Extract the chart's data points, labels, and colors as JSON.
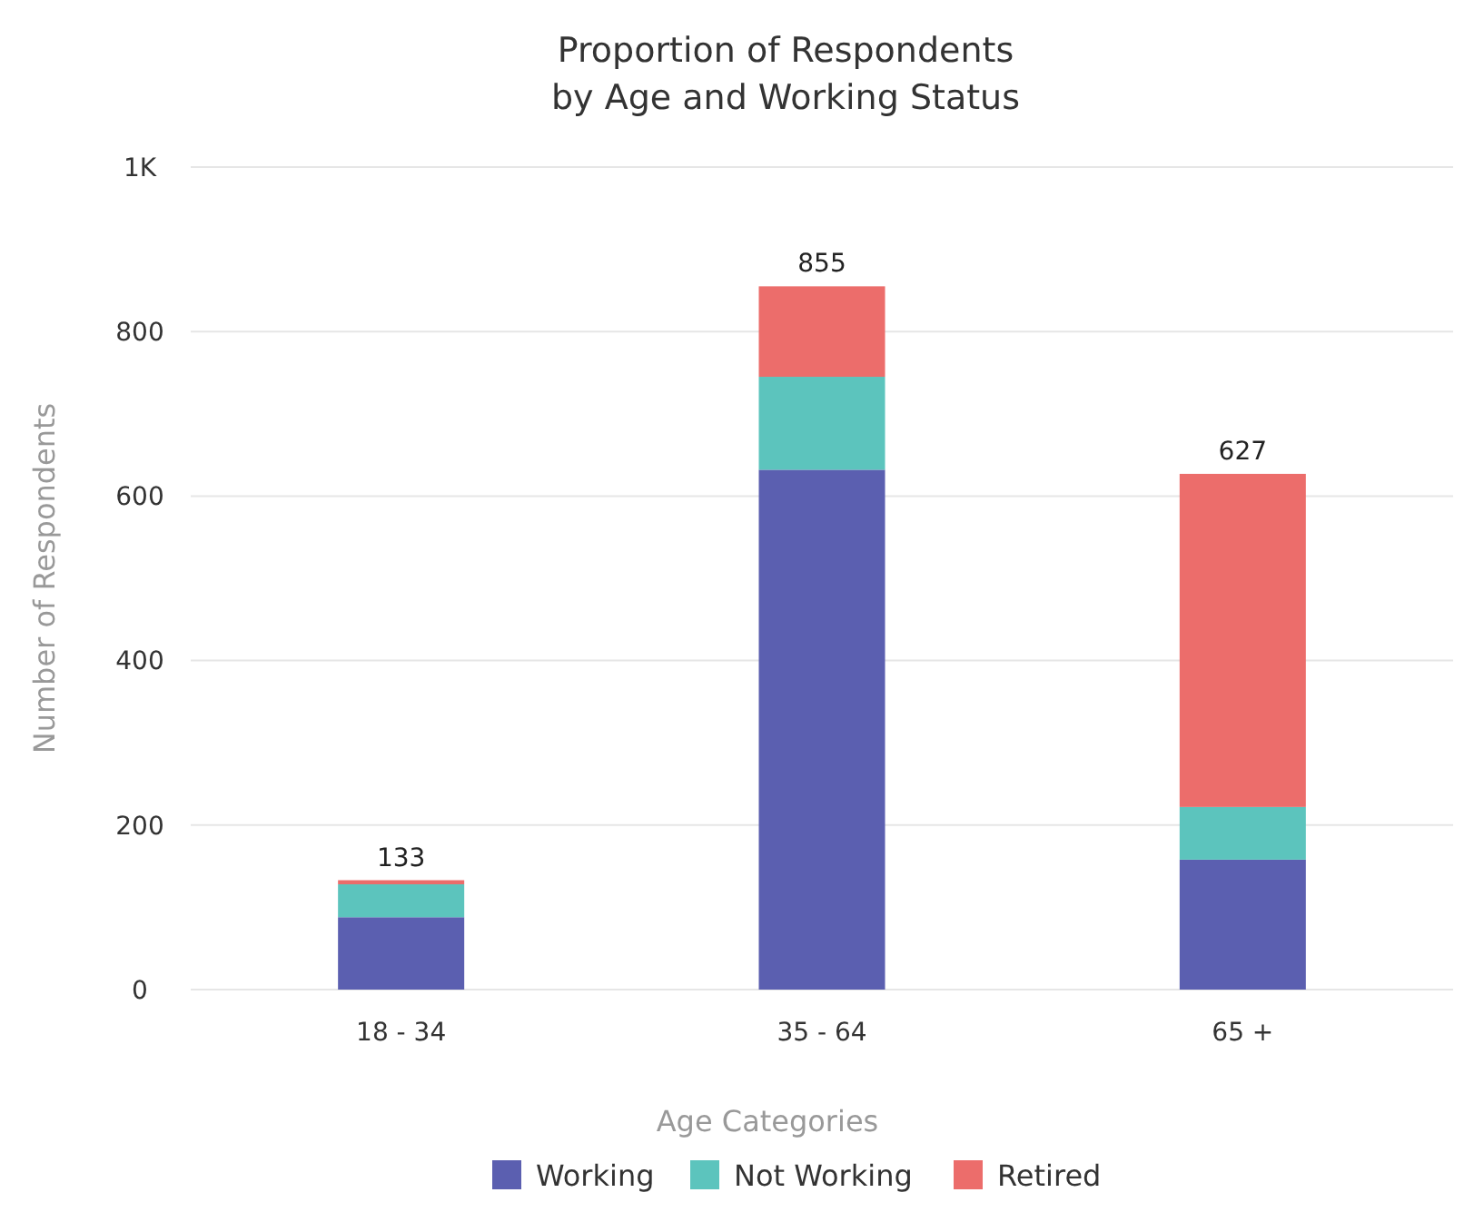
{
  "chart_data": {
    "type": "bar",
    "title": "Proportion of Respondents\nby Age and Working Status",
    "xlabel": "Age Categories",
    "ylabel": "Number of Respondents",
    "categories": [
      "18 - 34",
      "35 - 64",
      "65 +"
    ],
    "stacked": true,
    "series": [
      {
        "name": "Working",
        "color": "#5b5fb0",
        "values": [
          88,
          632,
          158
        ]
      },
      {
        "name": "Not Working",
        "color": "#5cc4bd",
        "values": [
          40,
          113,
          64
        ]
      },
      {
        "name": "Retired",
        "color": "#ec6d6b",
        "values": [
          5,
          110,
          405
        ]
      }
    ],
    "totals": [
      "133",
      "855",
      "627"
    ],
    "ylim": [
      0,
      1000
    ],
    "yticks": [
      0,
      200,
      400,
      600,
      800,
      {
        "value": 1000,
        "label": "1K"
      }
    ],
    "grid": "y",
    "legend": "bottom"
  }
}
